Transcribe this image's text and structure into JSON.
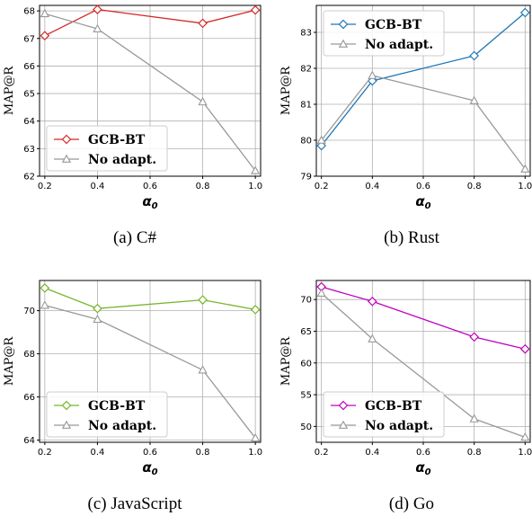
{
  "chart_data": [
    {
      "type": "line",
      "caption": "(a) C#",
      "xlabel": "α",
      "xlabel_sub": "0",
      "ylabel": "MAP@R",
      "x": [
        0.2,
        0.4,
        0.8,
        1.0
      ],
      "xticks": [
        "0.2",
        "0.4",
        "0.6",
        "0.8",
        "1.0"
      ],
      "xlim": [
        0.18,
        1.02
      ],
      "ylim": [
        62,
        68.2
      ],
      "yticks": [
        62,
        63,
        64,
        65,
        66,
        67,
        68
      ],
      "legend_position": "lower-left",
      "grid": true,
      "series": [
        {
          "name": "GCB-BT",
          "color": "#d62728",
          "marker": "diamond",
          "values": [
            67.1,
            68.05,
            67.55,
            68.03
          ]
        },
        {
          "name": "No adapt.",
          "color": "#999999",
          "marker": "triangle",
          "values": [
            67.9,
            67.35,
            64.7,
            62.2
          ]
        }
      ]
    },
    {
      "type": "line",
      "caption": "(b) Rust",
      "xlabel": "α",
      "xlabel_sub": "0",
      "ylabel": "MAP@R",
      "x": [
        0.2,
        0.4,
        0.8,
        1.0
      ],
      "xticks": [
        "0.2",
        "0.4",
        "0.6",
        "0.8",
        "1.0"
      ],
      "xlim": [
        0.18,
        1.02
      ],
      "ylim": [
        79,
        83.75
      ],
      "yticks": [
        79,
        80,
        81,
        82,
        83
      ],
      "legend_position": "upper-left",
      "grid": true,
      "series": [
        {
          "name": "GCB-BT",
          "color": "#1f77b4",
          "marker": "diamond",
          "values": [
            79.85,
            81.65,
            82.35,
            83.55
          ]
        },
        {
          "name": "No adapt.",
          "color": "#999999",
          "marker": "triangle",
          "values": [
            80.0,
            81.8,
            81.1,
            79.2
          ]
        }
      ]
    },
    {
      "type": "line",
      "caption": "(c) JavaScript",
      "xlabel": "α",
      "xlabel_sub": "0",
      "ylabel": "MAP@R",
      "x": [
        0.2,
        0.4,
        0.8,
        1.0
      ],
      "xticks": [
        "0.2",
        "0.4",
        "0.6",
        "0.8",
        "1.0"
      ],
      "xlim": [
        0.18,
        1.02
      ],
      "ylim": [
        63.9,
        71.4
      ],
      "yticks": [
        64,
        66,
        68,
        70
      ],
      "legend_position": "lower-left",
      "grid": true,
      "series": [
        {
          "name": "GCB-BT",
          "color": "#77b52b",
          "marker": "diamond",
          "values": [
            71.05,
            70.1,
            70.5,
            70.05
          ]
        },
        {
          "name": "No adapt.",
          "color": "#999999",
          "marker": "triangle",
          "values": [
            70.25,
            69.6,
            67.25,
            64.1
          ]
        }
      ]
    },
    {
      "type": "line",
      "caption": "(d) Go",
      "xlabel": "α",
      "xlabel_sub": "0",
      "ylabel": "MAP@R",
      "x": [
        0.2,
        0.4,
        0.8,
        1.0
      ],
      "xticks": [
        "0.2",
        "0.4",
        "0.6",
        "0.8",
        "1.0"
      ],
      "xlim": [
        0.18,
        1.02
      ],
      "ylim": [
        47.5,
        73
      ],
      "yticks": [
        50,
        55,
        60,
        65,
        70
      ],
      "legend_position": "lower-left",
      "grid": true,
      "series": [
        {
          "name": "GCB-BT",
          "color": "#c000c0",
          "marker": "diamond",
          "values": [
            72.0,
            69.7,
            64.1,
            62.2
          ]
        },
        {
          "name": "No adapt.",
          "color": "#999999",
          "marker": "triangle",
          "values": [
            71.0,
            63.8,
            51.2,
            48.3
          ]
        }
      ]
    }
  ]
}
